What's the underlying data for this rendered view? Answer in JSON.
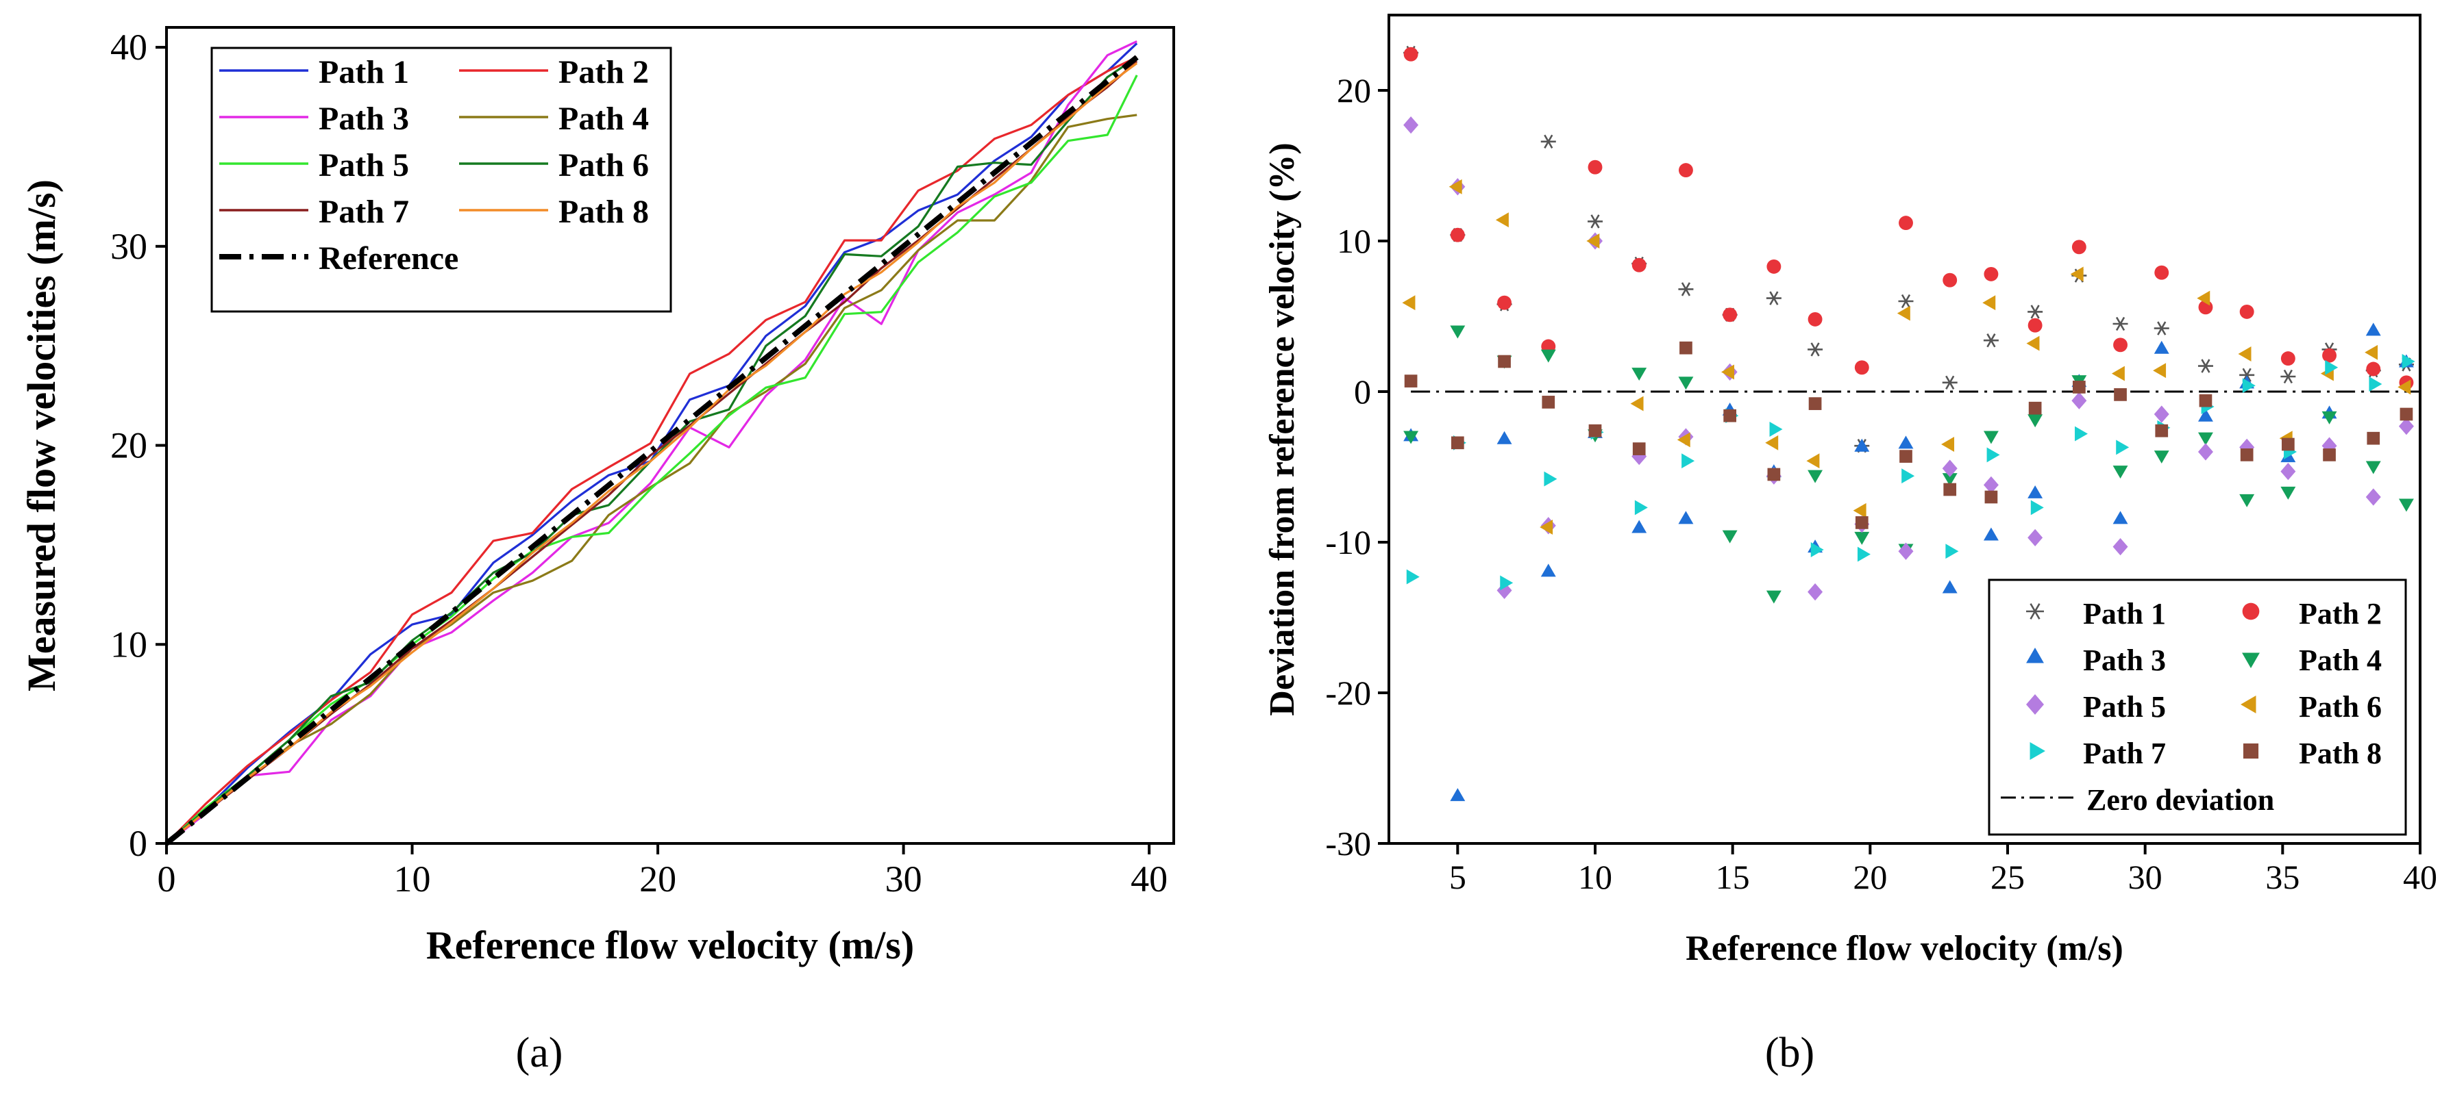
{
  "chart_data": [
    {
      "type": "line",
      "panel_label": "(a)",
      "xlabel": "Reference flow velocity (m/s)",
      "ylabel": "Measured flow velocities (m/s)",
      "xlim": [
        0,
        41
      ],
      "ylim": [
        0,
        41
      ],
      "xticks": [
        0,
        10,
        20,
        30,
        40
      ],
      "yticks": [
        0,
        10,
        20,
        30,
        40
      ],
      "x": [
        0,
        1.6,
        3.3,
        5,
        6.7,
        8.3,
        10,
        11.6,
        13.3,
        14.9,
        16.5,
        18,
        19.7,
        21.3,
        22.9,
        24.4,
        26,
        27.6,
        29.1,
        30.6,
        32.2,
        33.7,
        35.2,
        36.7,
        38.3,
        39.5
      ],
      "legend_position": "top-left",
      "series": [
        {
          "name": "Path 1",
          "color": "#1f2fd6",
          "values": [
            0,
            1.7,
            3.8,
            5.6,
            7.2,
            9.5,
            11.0,
            11.5,
            14.1,
            15.5,
            17.2,
            18.5,
            19.2,
            22.3,
            23.0,
            25.5,
            27.0,
            29.7,
            30.4,
            31.8,
            32.6,
            34.3,
            35.5,
            37.6,
            38.8,
            40.2
          ]
        },
        {
          "name": "Path 2",
          "color": "#e8272c",
          "values": [
            0,
            2.0,
            3.9,
            5.5,
            7.2,
            8.6,
            11.5,
            12.6,
            15.2,
            15.6,
            17.8,
            18.9,
            20.1,
            23.6,
            24.6,
            26.3,
            27.2,
            30.3,
            30.3,
            32.8,
            33.8,
            35.4,
            36.1,
            37.6,
            38.8,
            39.5
          ]
        },
        {
          "name": "Path 3",
          "color": "#e328e6",
          "values": [
            0,
            1.5,
            3.4,
            3.6,
            6.2,
            7.4,
            9.8,
            10.6,
            12.2,
            13.6,
            15.4,
            16.1,
            18.1,
            20.9,
            19.9,
            22.5,
            24.3,
            27.4,
            26.1,
            29.8,
            31.7,
            32.6,
            33.7,
            37.1,
            39.6,
            40.3
          ]
        },
        {
          "name": "Path 4",
          "color": "#8b7a18",
          "values": [
            0,
            1.7,
            3.2,
            4.9,
            6.0,
            7.5,
            9.8,
            11.0,
            12.6,
            13.2,
            14.2,
            16.5,
            17.9,
            19.1,
            21.6,
            22.7,
            24.1,
            26.9,
            27.8,
            29.8,
            31.3,
            31.3,
            33.3,
            36.0,
            36.4,
            36.6
          ]
        },
        {
          "name": "Path 5",
          "color": "#33e62e",
          "values": [
            0,
            1.8,
            3.4,
            5.2,
            7.0,
            8.2,
            10.0,
            11.4,
            13.3,
            14.7,
            15.4,
            15.6,
            17.8,
            19.6,
            21.5,
            22.9,
            23.4,
            26.6,
            26.7,
            29.2,
            30.7,
            32.5,
            33.2,
            35.3,
            35.6,
            38.6
          ]
        },
        {
          "name": "Path 6",
          "color": "#157a20",
          "values": [
            0,
            1.7,
            3.4,
            5.2,
            7.4,
            8.1,
            10.2,
            11.6,
            13.6,
            14.6,
            16.5,
            17.0,
            19.2,
            21.2,
            21.8,
            25.0,
            26.5,
            29.6,
            29.5,
            31.0,
            34.0,
            34.2,
            34.1,
            36.3,
            38.5,
            39.5
          ]
        },
        {
          "name": "Path 7",
          "color": "#8a1e1e",
          "values": [
            0,
            1.6,
            3.2,
            4.8,
            6.5,
            8.0,
            9.8,
            11.2,
            12.8,
            14.4,
            16.0,
            17.5,
            19.5,
            21.0,
            22.6,
            24.1,
            25.7,
            27.2,
            28.9,
            30.3,
            31.9,
            33.4,
            34.9,
            36.5,
            38.0,
            39.3
          ]
        },
        {
          "name": "Path 8",
          "color": "#f28c28",
          "values": [
            0,
            1.6,
            3.3,
            4.8,
            6.6,
            7.9,
            9.6,
            11.1,
            12.8,
            14.6,
            16.1,
            17.7,
            19.2,
            20.9,
            22.8,
            24.0,
            25.7,
            27.6,
            28.7,
            30.2,
            32.0,
            33.2,
            34.9,
            36.4,
            38.1,
            39.2
          ]
        },
        {
          "name": "Reference",
          "color": "#000000",
          "dash": "dash-dot",
          "values": [
            0,
            1.6,
            3.3,
            5,
            6.7,
            8.3,
            10,
            11.6,
            13.3,
            14.9,
            16.5,
            18,
            19.7,
            21.3,
            22.9,
            24.4,
            26,
            27.6,
            29.1,
            30.6,
            32.2,
            33.7,
            35.2,
            36.7,
            38.3,
            39.5
          ]
        }
      ]
    },
    {
      "type": "scatter",
      "panel_label": "(b)",
      "xlabel": "Reference flow velocity (m/s)",
      "ylabel": "Deviation from reference velocity (%)",
      "xlim": [
        2.5,
        40
      ],
      "ylim": [
        -30,
        25
      ],
      "xticks": [
        5,
        10,
        15,
        20,
        25,
        30,
        35,
        40
      ],
      "yticks": [
        -30,
        -20,
        -10,
        0,
        10,
        20
      ],
      "x": [
        3.3,
        5,
        6.7,
        8.3,
        10,
        11.6,
        13.3,
        14.9,
        16.5,
        18,
        19.7,
        21.3,
        22.9,
        24.4,
        26,
        27.6,
        29.1,
        30.6,
        32.2,
        33.7,
        35.2,
        36.7,
        38.3,
        39.5
      ],
      "legend_position": "bottom-right",
      "reference_line": {
        "name": "Zero deviation",
        "y": 0
      },
      "series": [
        {
          "name": "Path 1",
          "marker": "asterisk",
          "color": "#555555",
          "values": [
            22.5,
            10.4,
            5.8,
            16.6,
            11.3,
            8.5,
            6.8,
            5.1,
            6.2,
            2.8,
            -3.6,
            6.0,
            0.6,
            3.4,
            5.3,
            7.7,
            4.5,
            4.2,
            1.7,
            1.1,
            1.0,
            2.8,
            1.4,
            1.8
          ]
        },
        {
          "name": "Path 2",
          "marker": "circle",
          "color": "#e8343a",
          "values": [
            22.4,
            10.4,
            5.9,
            3.0,
            14.9,
            8.4,
            14.7,
            5.1,
            8.3,
            4.8,
            1.6,
            11.2,
            7.4,
            7.8,
            4.4,
            9.6,
            3.1,
            7.9,
            5.6,
            5.3,
            2.2,
            2.4,
            1.5,
            0.6
          ]
        },
        {
          "name": "Path 3",
          "marker": "triangle-up",
          "color": "#1f6fd6",
          "values": [
            -3.0,
            -26.9,
            -3.2,
            -12.0,
            -2.8,
            -9.1,
            -8.5,
            -1.3,
            -5.4,
            -10.4,
            -3.7,
            -3.5,
            -13.1,
            -9.6,
            -6.8,
            0.6,
            -8.5,
            2.8,
            -1.7,
            0.5,
            -4.4,
            -1.5,
            4.0,
            1.9
          ]
        },
        {
          "name": "Path 4",
          "marker": "triangle-down",
          "color": "#14a05a",
          "values": [
            -2.9,
            4.1,
            2.1,
            2.5,
            -2.8,
            1.3,
            0.7,
            -9.5,
            -13.5,
            -5.5,
            -9.6,
            -10.4,
            -5.7,
            -2.9,
            -1.8,
            0.8,
            -5.2,
            -4.2,
            -3.0,
            -7.1,
            -6.6,
            -1.6,
            -4.9,
            -7.4
          ]
        },
        {
          "name": "Path 5",
          "marker": "diamond",
          "color": "#b47ce0",
          "values": [
            17.7,
            13.6,
            -13.2,
            -8.9,
            10.0,
            -4.3,
            -3.0,
            1.3,
            -5.6,
            -13.3,
            -8.8,
            -10.6,
            -5.1,
            -6.2,
            -9.7,
            -0.6,
            -10.3,
            -1.5,
            -4.0,
            -3.7,
            -5.3,
            -3.6,
            -7.0,
            -2.3
          ]
        },
        {
          "name": "Path 6",
          "marker": "triangle-left",
          "color": "#d89a12",
          "values": [
            5.9,
            13.6,
            11.4,
            -9.0,
            10.0,
            -0.8,
            -3.2,
            1.3,
            -3.4,
            -4.6,
            -7.9,
            5.2,
            -3.5,
            5.9,
            3.2,
            7.8,
            1.2,
            1.4,
            6.2,
            2.5,
            -3.1,
            1.2,
            2.6,
            0.3
          ]
        },
        {
          "name": "Path 7",
          "marker": "triangle-right",
          "color": "#19d0d0",
          "values": [
            -12.3,
            -3.4,
            -12.7,
            -5.8,
            -2.7,
            -7.7,
            -4.6,
            -1.6,
            -2.5,
            -10.5,
            -10.8,
            -5.6,
            -10.6,
            -4.2,
            -7.7,
            -2.8,
            -3.7,
            -2.4,
            -1.0,
            0.4,
            -4.0,
            1.6,
            0.5,
            2.0
          ]
        },
        {
          "name": "Path 8",
          "marker": "square",
          "color": "#8a4a3a",
          "values": [
            0.7,
            -3.4,
            2.0,
            -0.7,
            -2.6,
            -3.8,
            2.9,
            -1.6,
            -5.5,
            -0.8,
            -8.7,
            -4.3,
            -6.5,
            -7.0,
            -1.1,
            0.3,
            -0.2,
            -2.6,
            -0.6,
            -4.2,
            -3.5,
            -4.2,
            -3.1,
            -1.5
          ]
        }
      ]
    }
  ]
}
